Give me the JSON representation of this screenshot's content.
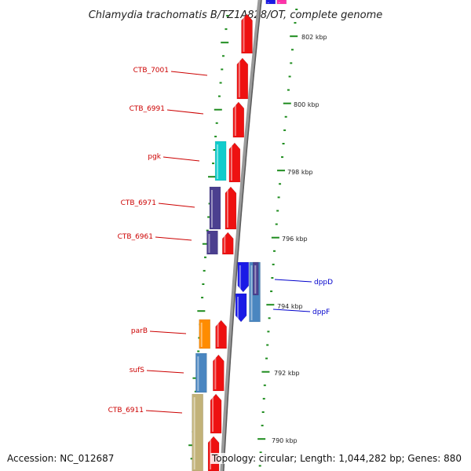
{
  "title": "Chlamydia trachomatis B/TZ1A828/OT, complete genome",
  "accession": "Accession: NC_012687",
  "summary": "Topology: circular; Length: 1,044,282 bp; Genes: 880",
  "colors": {
    "backbone": "#808080",
    "tick": "#1e8c1e",
    "label_reverse": "#cc0000",
    "label_forward": "#0000cc",
    "gene_red": "#ee1111",
    "gene_cyan": "#11cccc",
    "gene_indigo": "#4b3f8f",
    "gene_blue": "#1a1ae6",
    "gene_steel": "#4a86c0",
    "gene_orange": "#ff8c00",
    "gene_khaki": "#c2b279",
    "gene_magenta": "#ff33aa"
  },
  "scale_labels": [
    {
      "kbp": 802,
      "text": "802 kbp"
    },
    {
      "kbp": 800,
      "text": "800 kbp"
    },
    {
      "kbp": 798,
      "text": "798 kbp"
    },
    {
      "kbp": 796,
      "text": "796 kbp"
    },
    {
      "kbp": 794,
      "text": "794 kbp"
    },
    {
      "kbp": 792,
      "text": "792 kbp"
    },
    {
      "kbp": 790,
      "text": "790 kbp"
    }
  ],
  "gene_labels": [
    {
      "name": "CTB_7001",
      "strand": "reverse"
    },
    {
      "name": "CTB_6991",
      "strand": "reverse"
    },
    {
      "name": "pgk",
      "strand": "reverse"
    },
    {
      "name": "CTB_6971",
      "strand": "reverse"
    },
    {
      "name": "CTB_6961",
      "strand": "reverse"
    },
    {
      "name": "dppD",
      "strand": "forward"
    },
    {
      "name": "dppF",
      "strand": "forward"
    },
    {
      "name": "parB",
      "strand": "reverse"
    },
    {
      "name": "sufS",
      "strand": "reverse"
    },
    {
      "name": "CTB_6911",
      "strand": "reverse"
    }
  ]
}
